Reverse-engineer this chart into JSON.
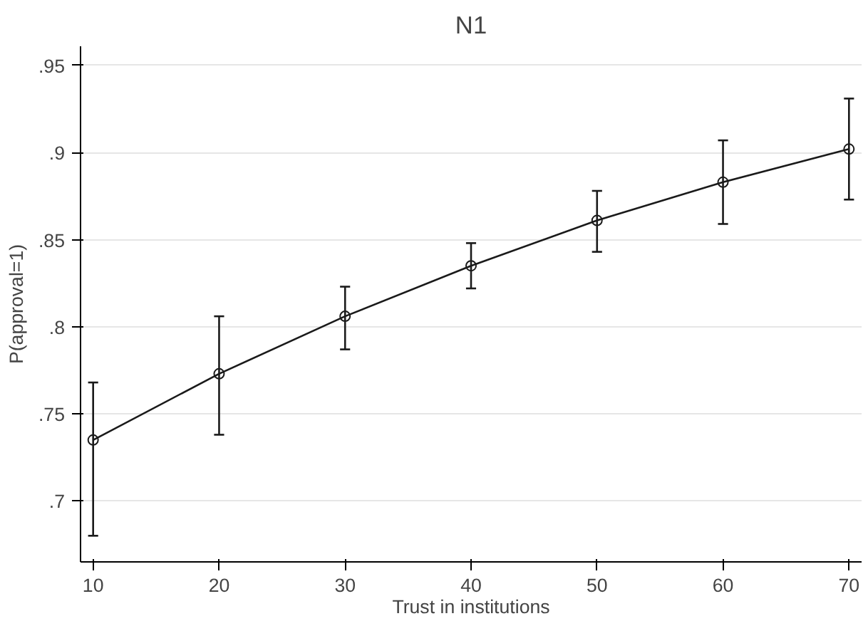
{
  "chart_data": {
    "type": "line",
    "title": "N1",
    "xlabel": "Trust in institutions",
    "ylabel": "P(approval=1)",
    "x": [
      10,
      20,
      30,
      40,
      50,
      60,
      70
    ],
    "series": [
      {
        "color": "#1a1a1a",
        "values": [
          0.735,
          0.773,
          0.806,
          0.835,
          0.861,
          0.883,
          0.902
        ],
        "errors": [
          [
            0.68,
            0.768
          ],
          [
            0.738,
            0.806
          ],
          [
            0.787,
            0.823
          ],
          [
            0.822,
            0.848
          ],
          [
            0.843,
            0.878
          ],
          [
            0.859,
            0.907
          ],
          [
            0.873,
            0.931
          ]
        ]
      }
    ],
    "xlim": [
      9,
      71
    ],
    "ylim": [
      0.665,
      0.961
    ],
    "xticks": [
      10,
      20,
      30,
      40,
      50,
      60,
      70
    ],
    "yticks": [
      {
        "value": 0.7,
        "label": ".7"
      },
      {
        "value": 0.75,
        "label": ".75"
      },
      {
        "value": 0.8,
        "label": ".8"
      },
      {
        "value": 0.85,
        "label": ".85"
      },
      {
        "value": 0.9,
        "label": ".9"
      },
      {
        "value": 0.95,
        "label": ".95"
      }
    ],
    "grid": "y",
    "marker": "circle",
    "line_style": "solid"
  }
}
